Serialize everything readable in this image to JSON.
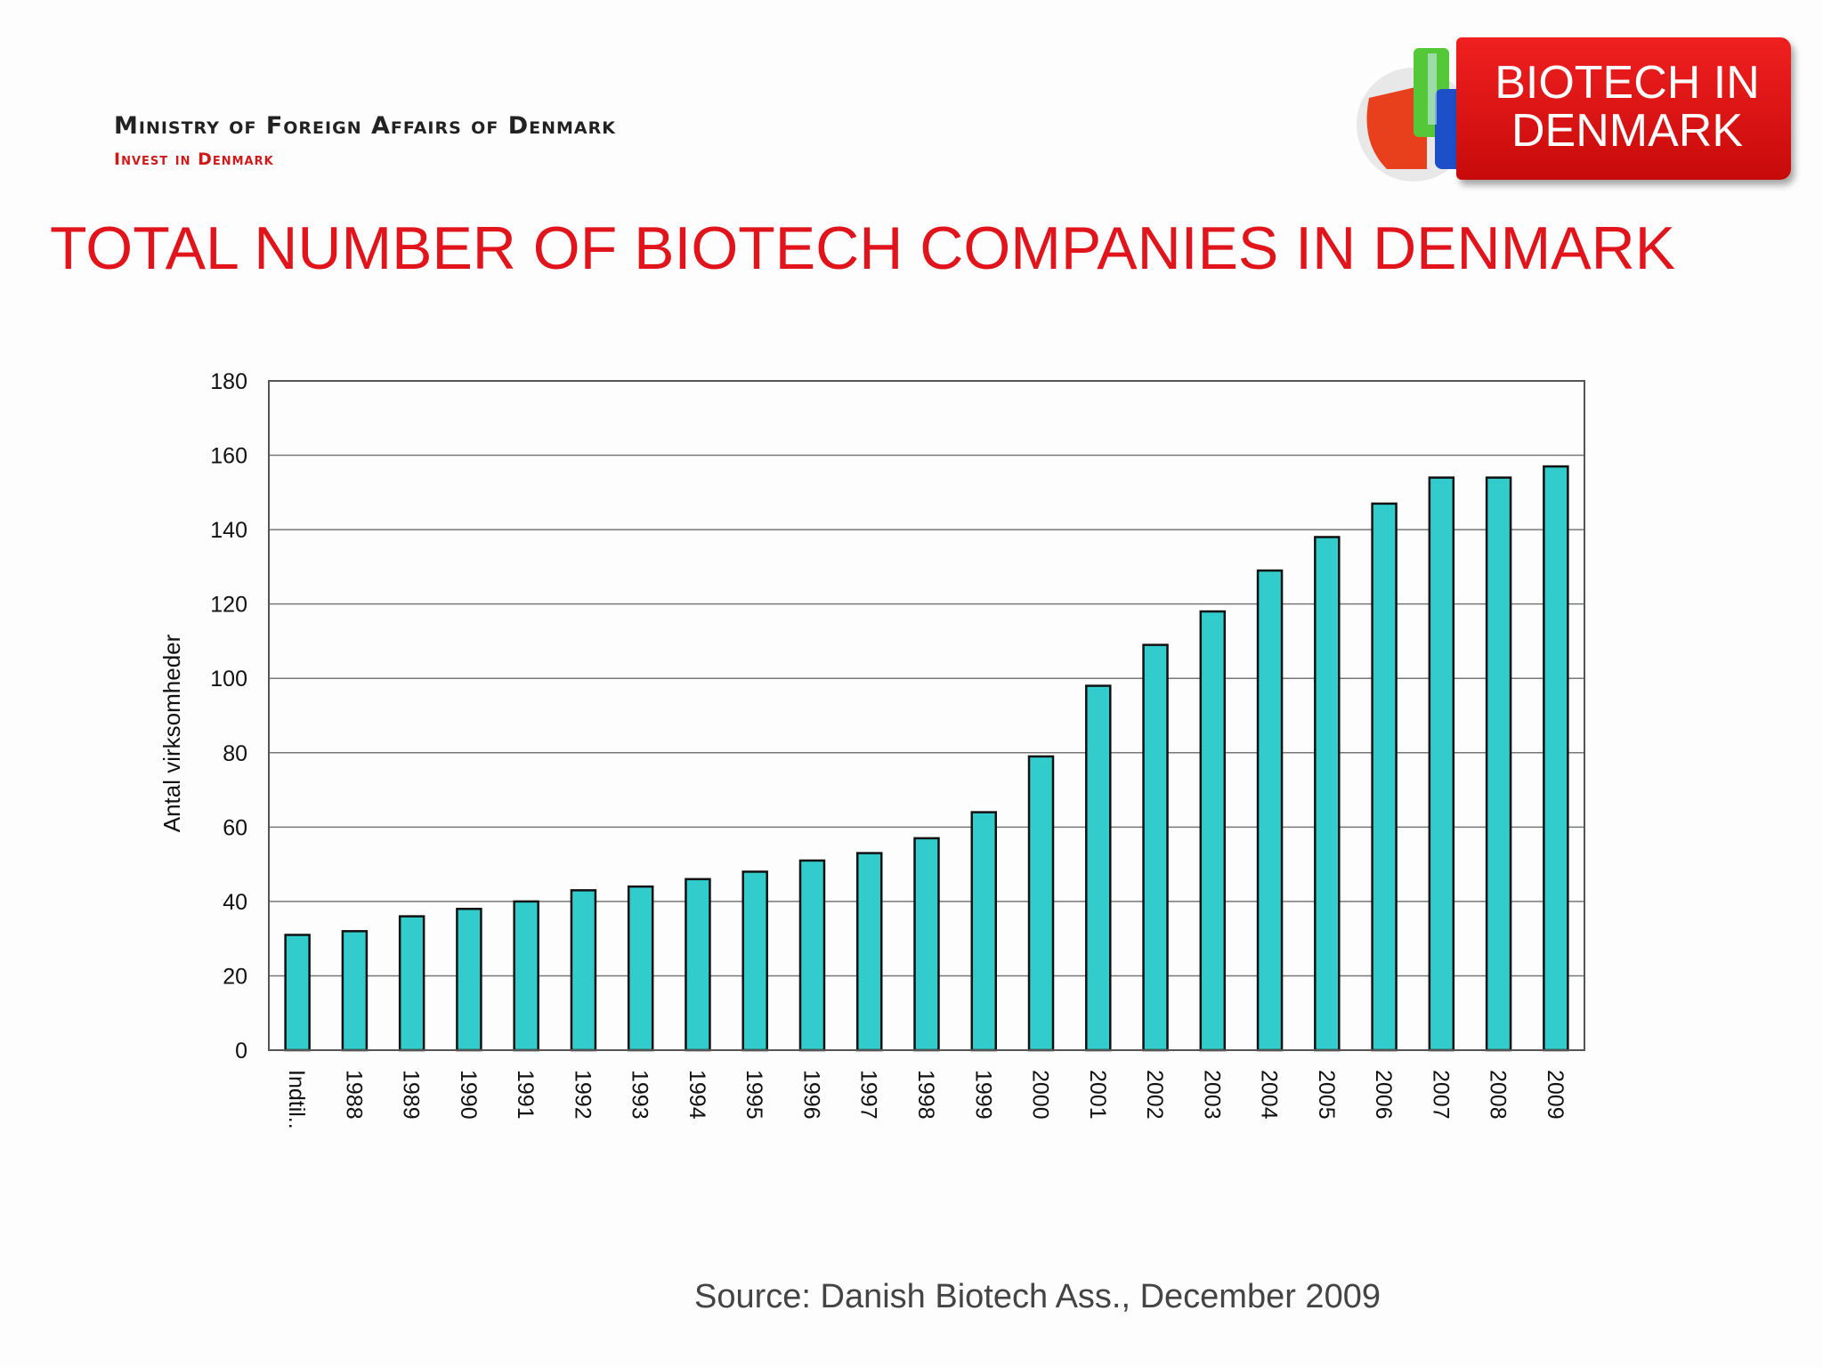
{
  "header": {
    "ministry": "Ministry of Foreign Affairs of Denmark",
    "invest": "Invest in Denmark"
  },
  "badge": {
    "text": "BIOTECH IN\nDENMARK",
    "color": "#e01818"
  },
  "slide": {
    "title": "TOTAL NUMBER OF BIOTECH COMPANIES IN DENMARK",
    "title_color": "#e0141a",
    "source": "Source: Danish Biotech Ass., December 2009"
  },
  "chart_data": {
    "type": "bar",
    "title": "",
    "xlabel": "",
    "ylabel": "Antal virksomheder",
    "categories": [
      "Indtil..",
      "1988",
      "1989",
      "1990",
      "1991",
      "1992",
      "1993",
      "1994",
      "1995",
      "1996",
      "1997",
      "1998",
      "1999",
      "2000",
      "2001",
      "2002",
      "2003",
      "2004",
      "2005",
      "2006",
      "2007",
      "2008",
      "2009"
    ],
    "values": [
      31,
      32,
      36,
      38,
      40,
      43,
      44,
      46,
      48,
      51,
      53,
      57,
      64,
      79,
      98,
      109,
      118,
      129,
      138,
      147,
      154,
      154,
      157
    ],
    "ylim": [
      0,
      180
    ],
    "yticks": [
      0,
      20,
      40,
      60,
      80,
      100,
      120,
      140,
      160,
      180
    ],
    "grid": true,
    "bar_color": "#33cccc",
    "legend": "none"
  }
}
